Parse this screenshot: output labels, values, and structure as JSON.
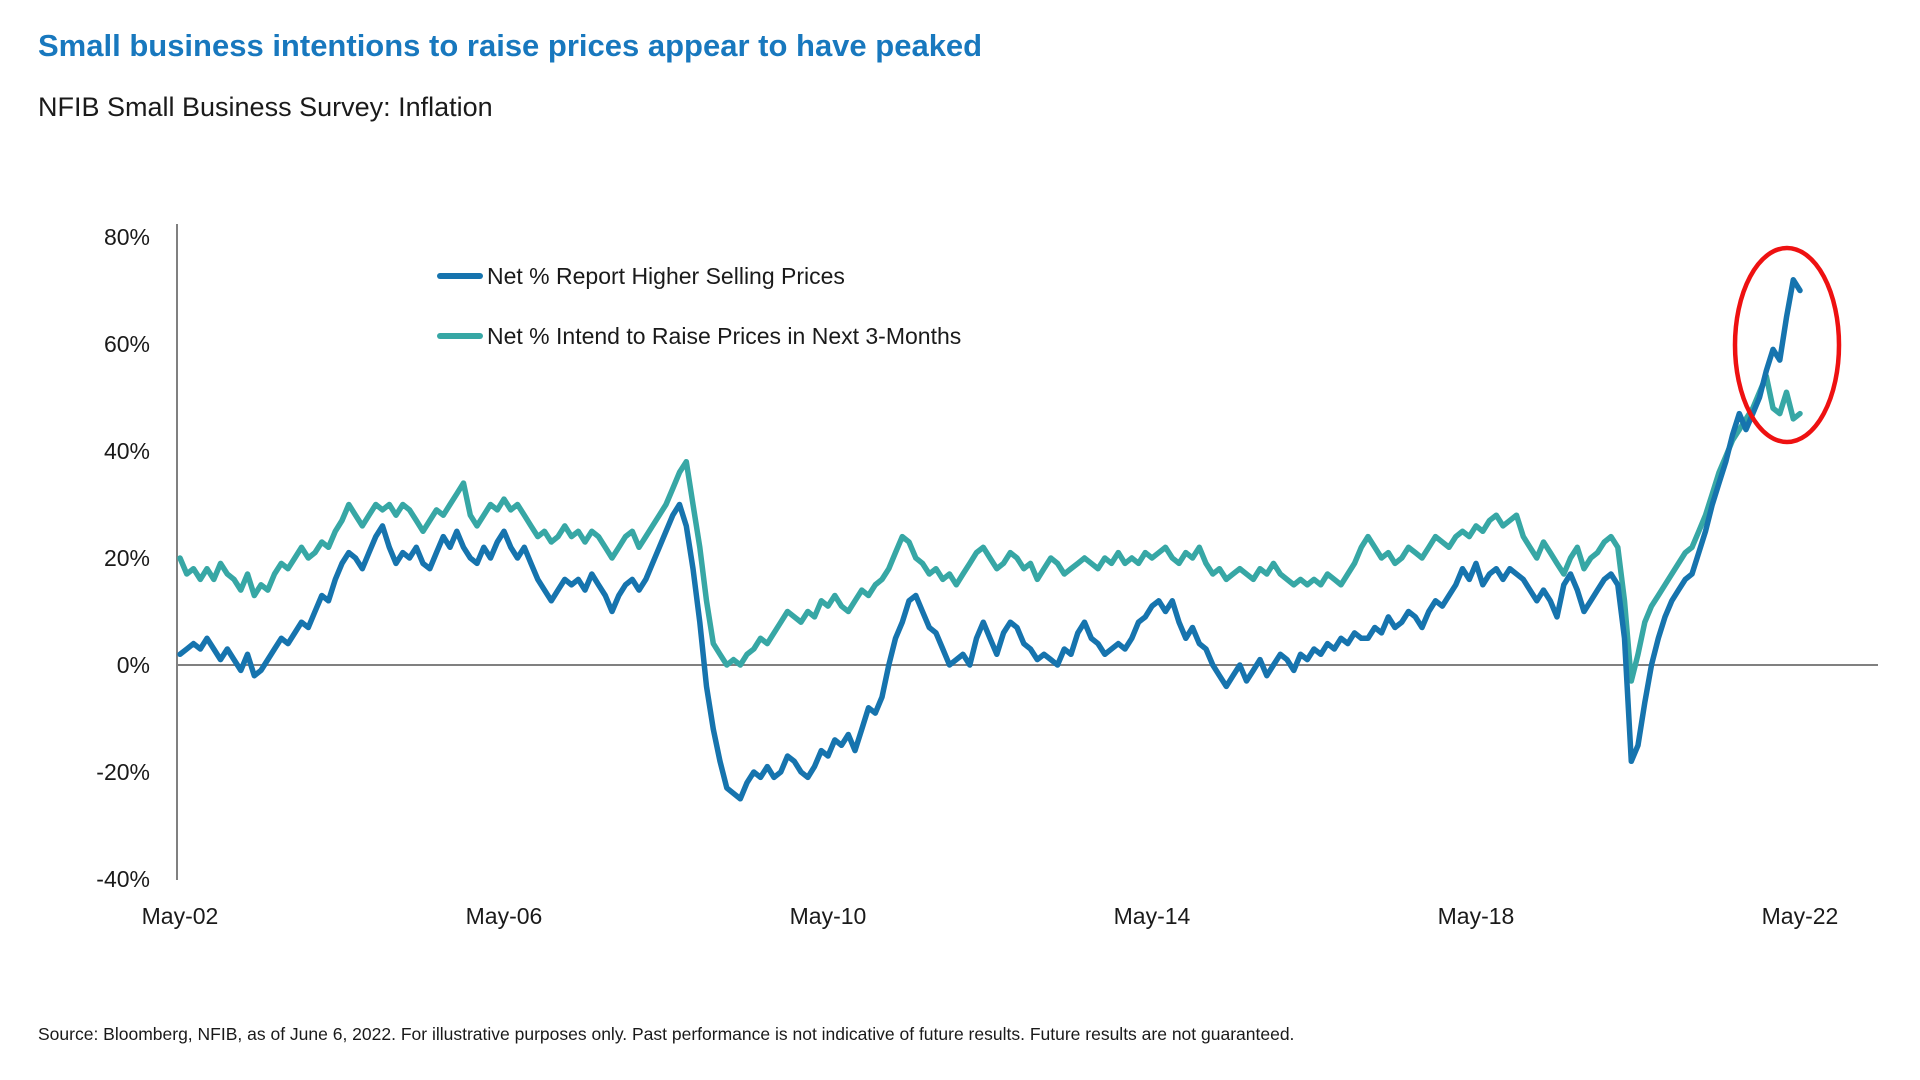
{
  "header": {
    "title": "Small business intentions to raise prices appear to have peaked",
    "subtitle": "NFIB Small Business Survey: Inflation"
  },
  "footer": {
    "source": "Source: Bloomberg, NFIB, as of June 6, 2022. For illustrative purposes only. Past performance is not indicative of future results. Future results are not guaranteed."
  },
  "colors": {
    "title_accent": "#1878BE",
    "axis_gray": "#808080",
    "annotation_red": "#EE1111"
  },
  "chart_data": {
    "type": "line",
    "title": "Small business intentions to raise prices appear to have peaked",
    "subtitle": "NFIB Small Business Survey: Inflation",
    "x_monthly_start": "2002-05",
    "x_monthly_end": "2022-05",
    "x_tick_labels": [
      "May-02",
      "May-06",
      "May-10",
      "May-14",
      "May-18",
      "May-22"
    ],
    "y_tick_labels": [
      "80%",
      "60%",
      "40%",
      "20%",
      "0%",
      "-20%",
      "-40%"
    ],
    "ylim": [
      -40,
      80
    ],
    "y_unit": "percent",
    "grid": "zero-line-only",
    "legend_position": "top-left-inside",
    "annotation": {
      "shape": "ellipse",
      "color": "#EE1111",
      "circles": "2022 peak of both series"
    },
    "series": [
      {
        "name": "Net % Report Higher Selling Prices",
        "color": "#1674AE",
        "values": [
          2,
          3,
          4,
          3,
          5,
          3,
          1,
          3,
          1,
          -1,
          2,
          -2,
          -1,
          1,
          3,
          5,
          4,
          6,
          8,
          7,
          10,
          13,
          12,
          16,
          19,
          21,
          20,
          18,
          21,
          24,
          26,
          22,
          19,
          21,
          20,
          22,
          19,
          18,
          21,
          24,
          22,
          25,
          22,
          20,
          19,
          22,
          20,
          23,
          25,
          22,
          20,
          22,
          19,
          16,
          14,
          12,
          14,
          16,
          15,
          16,
          14,
          17,
          15,
          13,
          10,
          13,
          15,
          16,
          14,
          16,
          19,
          22,
          25,
          28,
          30,
          26,
          18,
          8,
          -4,
          -12,
          -18,
          -23,
          -24,
          -25,
          -22,
          -20,
          -21,
          -19,
          -21,
          -20,
          -17,
          -18,
          -20,
          -21,
          -19,
          -16,
          -17,
          -14,
          -15,
          -13,
          -16,
          -12,
          -8,
          -9,
          -6,
          0,
          5,
          8,
          12,
          13,
          10,
          7,
          6,
          3,
          0,
          1,
          2,
          0,
          5,
          8,
          5,
          2,
          6,
          8,
          7,
          4,
          3,
          1,
          2,
          1,
          0,
          3,
          2,
          6,
          8,
          5,
          4,
          2,
          3,
          4,
          3,
          5,
          8,
          9,
          11,
          12,
          10,
          12,
          8,
          5,
          7,
          4,
          3,
          0,
          -2,
          -4,
          -2,
          0,
          -3,
          -1,
          1,
          -2,
          0,
          2,
          1,
          -1,
          2,
          1,
          3,
          2,
          4,
          3,
          5,
          4,
          6,
          5,
          5,
          7,
          6,
          9,
          7,
          8,
          10,
          9,
          7,
          10,
          12,
          11,
          13,
          15,
          18,
          16,
          19,
          15,
          17,
          18,
          16,
          18,
          17,
          16,
          14,
          12,
          14,
          12,
          9,
          15,
          17,
          14,
          10,
          12,
          14,
          16,
          17,
          15,
          5,
          -18,
          -15,
          -7,
          0,
          5,
          9,
          12,
          14,
          16,
          17,
          21,
          25,
          30,
          34,
          38,
          43,
          47,
          44,
          47,
          50,
          55,
          59,
          57,
          65,
          72,
          70
        ]
      },
      {
        "name": "Net % Intend to Raise Prices in Next 3-Months",
        "color": "#37A7A5",
        "values": [
          20,
          17,
          18,
          16,
          18,
          16,
          19,
          17,
          16,
          14,
          17,
          13,
          15,
          14,
          17,
          19,
          18,
          20,
          22,
          20,
          21,
          23,
          22,
          25,
          27,
          30,
          28,
          26,
          28,
          30,
          29,
          30,
          28,
          30,
          29,
          27,
          25,
          27,
          29,
          28,
          30,
          32,
          34,
          28,
          26,
          28,
          30,
          29,
          31,
          29,
          30,
          28,
          26,
          24,
          25,
          23,
          24,
          26,
          24,
          25,
          23,
          25,
          24,
          22,
          20,
          22,
          24,
          25,
          22,
          24,
          26,
          28,
          30,
          33,
          36,
          38,
          30,
          22,
          12,
          4,
          2,
          0,
          1,
          0,
          2,
          3,
          5,
          4,
          6,
          8,
          10,
          9,
          8,
          10,
          9,
          12,
          11,
          13,
          11,
          10,
          12,
          14,
          13,
          15,
          16,
          18,
          21,
          24,
          23,
          20,
          19,
          17,
          18,
          16,
          17,
          15,
          17,
          19,
          21,
          22,
          20,
          18,
          19,
          21,
          20,
          18,
          19,
          16,
          18,
          20,
          19,
          17,
          18,
          19,
          20,
          19,
          18,
          20,
          19,
          21,
          19,
          20,
          19,
          21,
          20,
          21,
          22,
          20,
          19,
          21,
          20,
          22,
          19,
          17,
          18,
          16,
          17,
          18,
          17,
          16,
          18,
          17,
          19,
          17,
          16,
          15,
          16,
          15,
          16,
          15,
          17,
          16,
          15,
          17,
          19,
          22,
          24,
          22,
          20,
          21,
          19,
          20,
          22,
          21,
          20,
          22,
          24,
          23,
          22,
          24,
          25,
          24,
          26,
          25,
          27,
          28,
          26,
          27,
          28,
          24,
          22,
          20,
          23,
          21,
          19,
          17,
          20,
          22,
          18,
          20,
          21,
          23,
          24,
          22,
          12,
          -3,
          2,
          8,
          11,
          13,
          15,
          17,
          19,
          21,
          22,
          25,
          28,
          32,
          36,
          39,
          42,
          44,
          46,
          48,
          51,
          54,
          48,
          47,
          51,
          46,
          47
        ]
      }
    ]
  }
}
